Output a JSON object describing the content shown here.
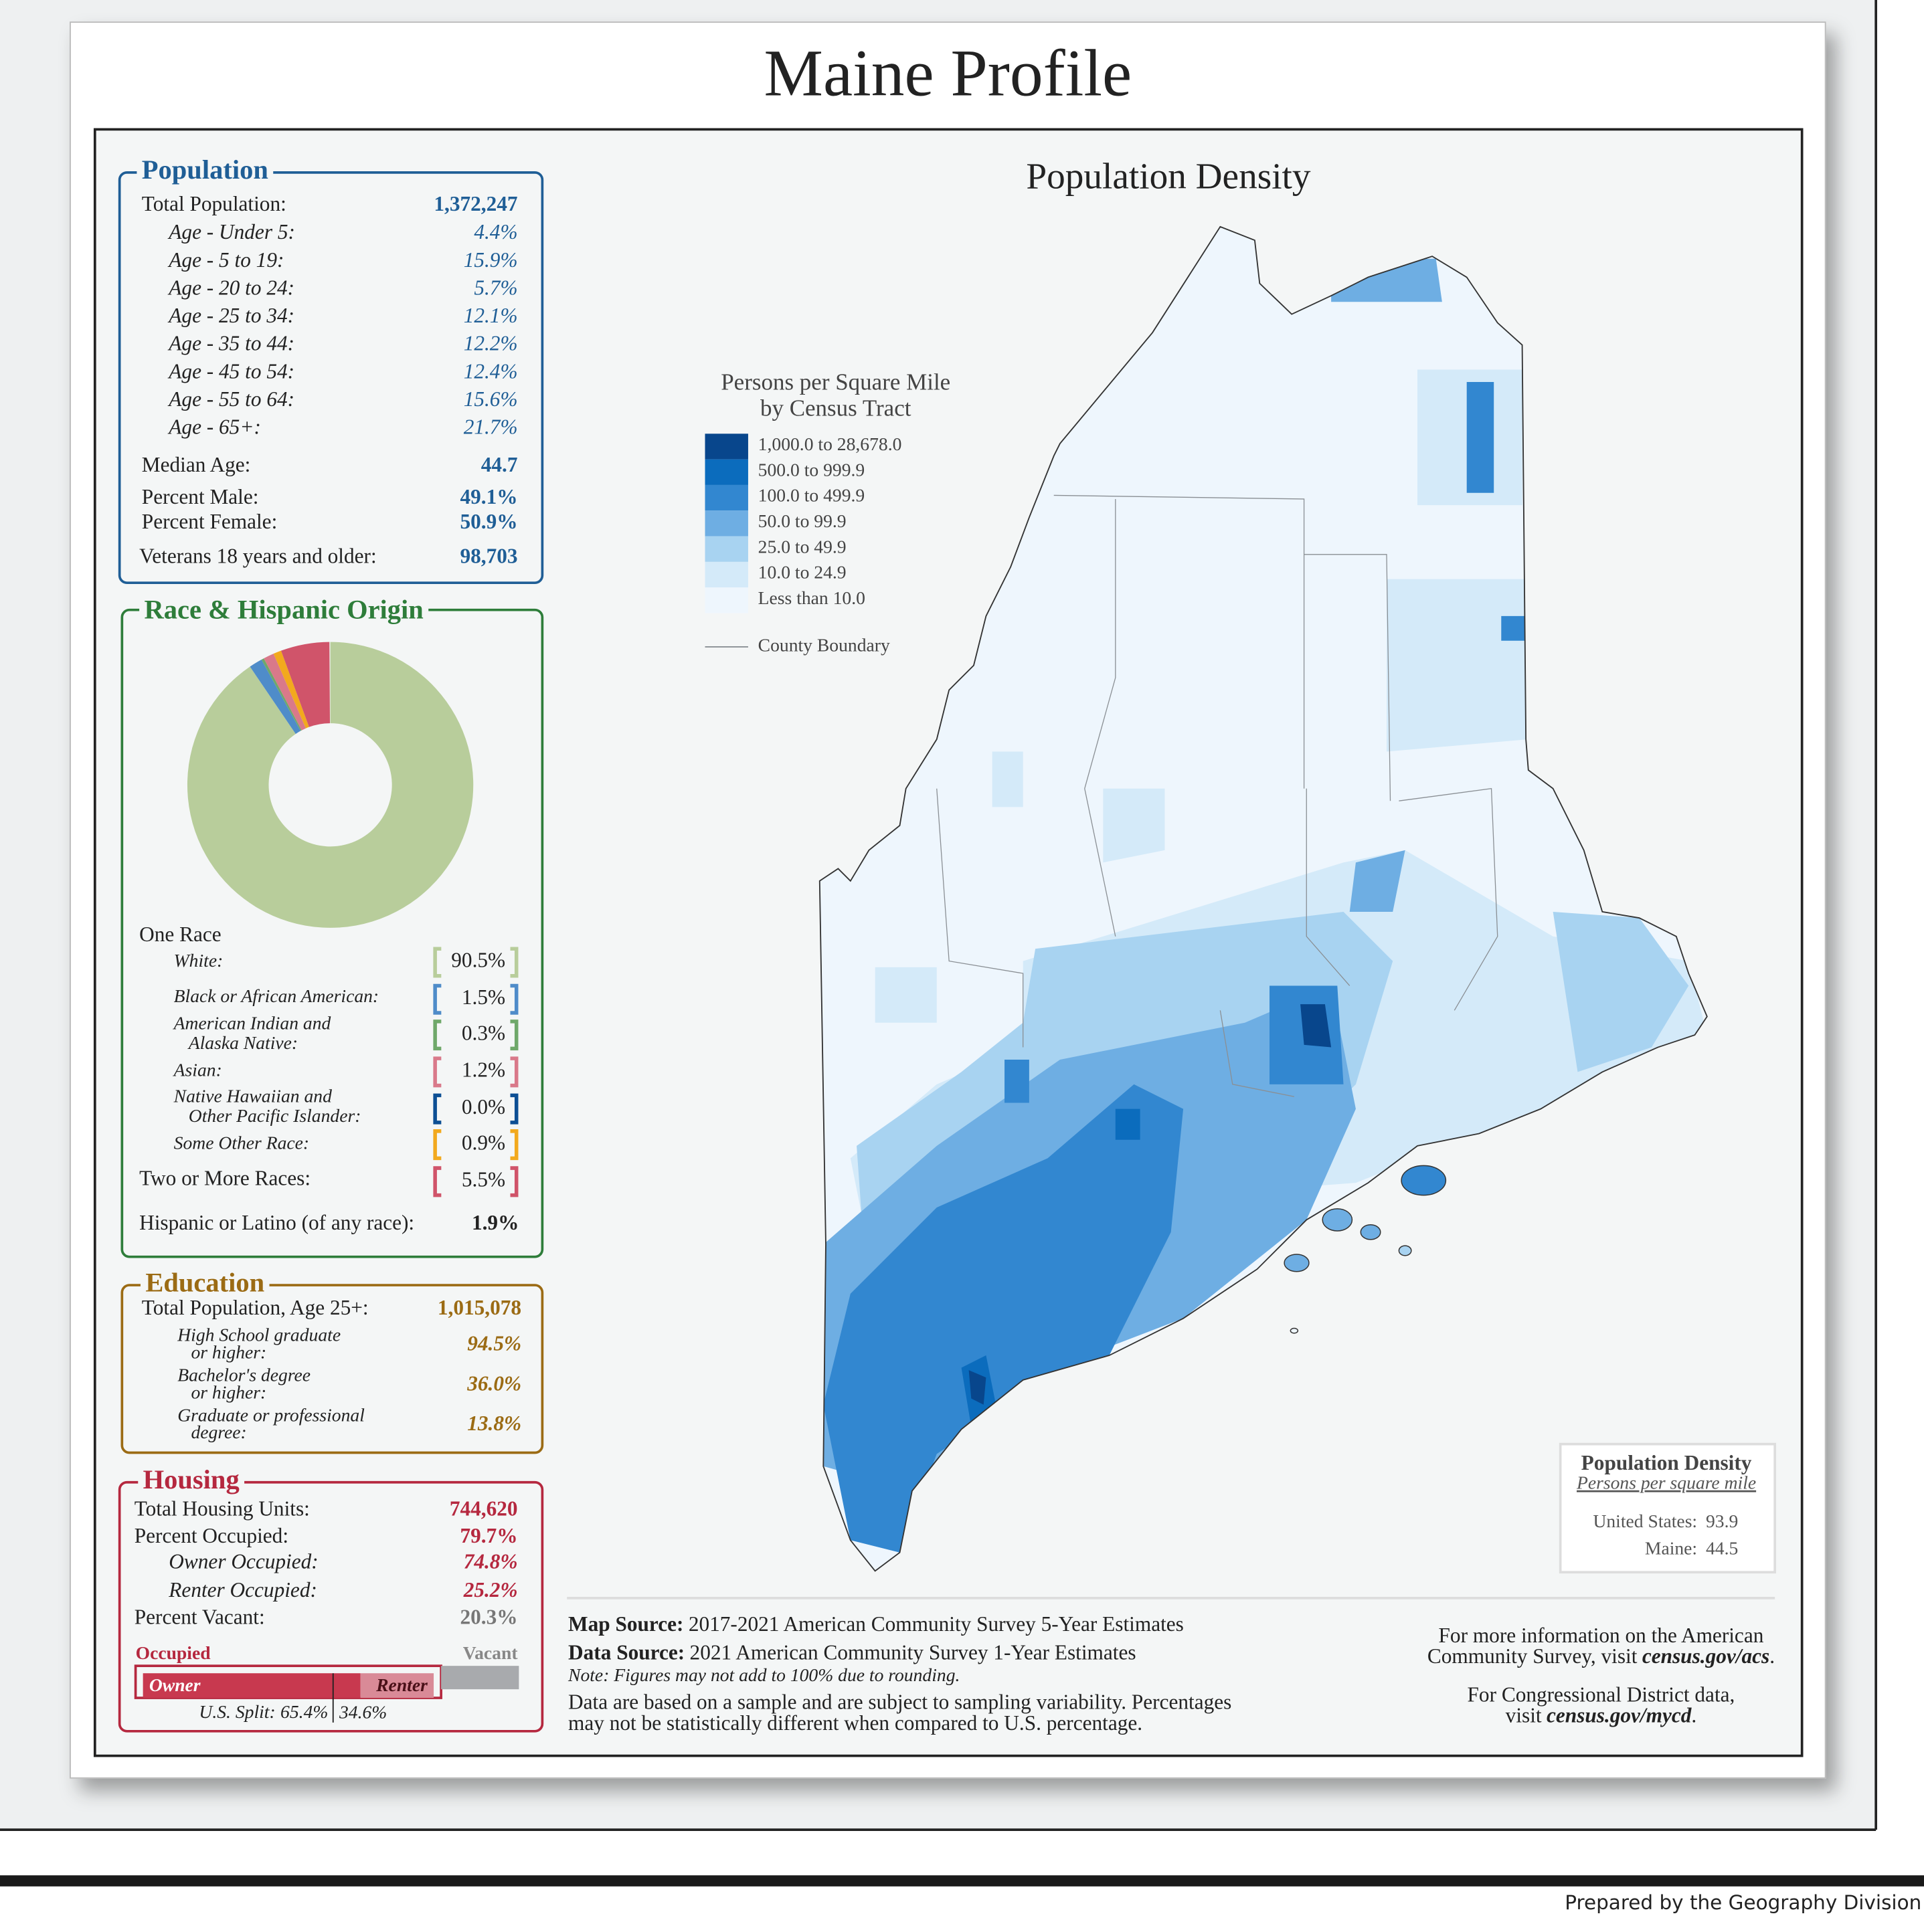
{
  "header": {
    "title": "Maine Profile"
  },
  "population": {
    "title": "Population",
    "total": {
      "label": "Total Population:",
      "text": "1,372,247"
    },
    "ages": [
      {
        "label": "Age - Under 5:",
        "text": "4.4%"
      },
      {
        "label": "Age - 5 to 19:",
        "text": "15.9%"
      },
      {
        "label": "Age - 20 to 24:",
        "text": "5.7%"
      },
      {
        "label": "Age - 25 to 34:",
        "text": "12.1%"
      },
      {
        "label": "Age - 35 to 44:",
        "text": "12.2%"
      },
      {
        "label": "Age - 45 to 54:",
        "text": "12.4%"
      },
      {
        "label": "Age - 55 to 64:",
        "text": "15.6%"
      },
      {
        "label": "Age - 65+:",
        "text": "21.7%"
      }
    ],
    "median_age": {
      "label": "Median Age:",
      "text": "44.7"
    },
    "male": {
      "label": "Percent Male:",
      "text": "49.1%"
    },
    "female": {
      "label": "Percent Female:",
      "text": "50.9%"
    },
    "veterans": {
      "label": "Veterans 18 years and older:",
      "text": "98,703"
    }
  },
  "race": {
    "title": "Race & Hispanic Origin",
    "one_race": "One Race",
    "rows": [
      {
        "label": [
          "White:"
        ],
        "value": 90.5,
        "value_label": "90.5%",
        "color": "#b8cd9b"
      },
      {
        "label": [
          "Black or African American:"
        ],
        "value": 1.5,
        "value_label": "1.5%",
        "color": "#4f8cc9"
      },
      {
        "label": [
          "American Indian and",
          "Alaska Native:"
        ],
        "value": 0.3,
        "value_label": "0.3%",
        "color": "#6fa86a"
      },
      {
        "label": [
          "Asian:"
        ],
        "value": 1.2,
        "value_label": "1.2%",
        "color": "#d9798a"
      },
      {
        "label": [
          "Native Hawaiian and",
          "Other Pacific Islander:"
        ],
        "value": 0.0,
        "value_label": "0.0%",
        "color": "#0d4f94"
      },
      {
        "label": [
          "Some Other Race:"
        ],
        "value": 0.9,
        "value_label": "0.9%",
        "color": "#f2a91e"
      }
    ],
    "two_or_more": {
      "label": "Two or More Races:",
      "value": 5.5,
      "value_label": "5.5%",
      "color": "#d0546a"
    },
    "hispanic": {
      "label": "Hispanic or Latino (of any race):",
      "text": "1.9%"
    }
  },
  "education": {
    "title": "Education",
    "total": {
      "label": "Total Population, Age 25+:",
      "text": "1,015,078"
    },
    "rows": [
      {
        "label": [
          "High School  graduate",
          "or higher:"
        ],
        "text": "94.5%"
      },
      {
        "label": [
          "Bachelor's degree",
          "or higher:"
        ],
        "text": "36.0%"
      },
      {
        "label": [
          "Graduate or professional",
          "degree:"
        ],
        "text": "13.8%"
      }
    ]
  },
  "housing": {
    "title": "Housing",
    "total": {
      "label": "Total Housing Units:",
      "text": "744,620"
    },
    "occupied": {
      "label": "Percent Occupied:",
      "value": 79.7,
      "value_label": "79.7%"
    },
    "owner": {
      "label": "Owner Occupied:",
      "value": 74.8,
      "value_label": "74.8%"
    },
    "renter": {
      "label": "Renter Occupied:",
      "value": 25.2,
      "value_label": "25.2%"
    },
    "vacant": {
      "label": "Percent Vacant:",
      "value": 20.3,
      "value_label": "20.3%"
    },
    "bar": {
      "occupied": "Occupied",
      "vacant": "Vacant",
      "owner": "Owner",
      "renter": "Renter"
    },
    "us_split": {
      "label": "U.S. Split:",
      "owner": {
        "value": 65.4,
        "value_label": "65.4%"
      },
      "renter": "34.6%"
    }
  },
  "map": {
    "title": "Population Density",
    "legend": {
      "title": [
        "Persons per Square Mile",
        "by Census Tract"
      ],
      "classes": [
        {
          "label": "1,000.0 to 28,678.0",
          "color": "#08468c"
        },
        {
          "label": "500.0 to 999.9",
          "color": "#0b6cbd"
        },
        {
          "label": "100.0 to 499.9",
          "color": "#3287d0"
        },
        {
          "label": "50.0 to 99.9",
          "color": "#6eaee3"
        },
        {
          "label": "25.0 to 49.9",
          "color": "#a8d3f1"
        },
        {
          "label": "10.0 to 24.9",
          "color": "#d4eaf9"
        },
        {
          "label": "Less than 10.0",
          "color": "#eef6fd"
        }
      ],
      "boundary": "County Boundary"
    },
    "inset": {
      "title": "Population Density",
      "subtitle": "Persons per square mile",
      "rows": [
        {
          "label": "United States:",
          "value": 93.9
        },
        {
          "label": "Maine:",
          "value": 44.5
        }
      ]
    }
  },
  "footer": {
    "map_source": {
      "label": "Map Source:",
      "text": "2017-2021 American Community Survey 5-Year Estimates"
    },
    "data_source": {
      "label": "Data Source:",
      "text": "2021 American Community Survey 1-Year Estimates"
    },
    "note": "Note: Figures may not add to 100% due to rounding.",
    "disclaimer": [
      "Data are based on a sample and are subject to sampling variability. Percentages",
      "may not be statistically different when compared to U.S. percentage."
    ],
    "more_info": [
      "For more information on the American",
      "Community Survey, visit",
      "census.gov/acs",
      "."
    ],
    "district_info": [
      "For Congressional District data,",
      "visit",
      "census.gov/mycd",
      "."
    ]
  },
  "credit": "Prepared by the Geography Division"
}
